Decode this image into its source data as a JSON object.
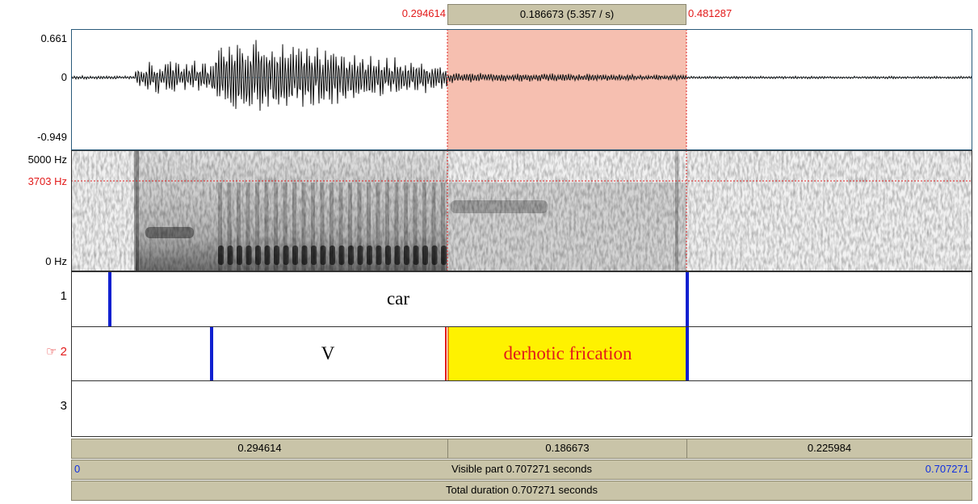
{
  "selection": {
    "start": "0.294614",
    "duration": "0.186673 (5.357 / s)",
    "end": "0.481287"
  },
  "waveform": {
    "max": "0.661",
    "zero": "0",
    "min": "-0.949"
  },
  "spectrogram": {
    "top": "5000 Hz",
    "cursor": "3703 Hz",
    "bottom": "0 Hz"
  },
  "tiers": [
    {
      "label": "1",
      "intervals": [
        "car"
      ]
    },
    {
      "label": "☞ 2",
      "intervals": [
        "V",
        "derhotic frication"
      ]
    },
    {
      "label": "3"
    }
  ],
  "bottom": {
    "segments": [
      "0.294614",
      "0.186673",
      "0.225984"
    ],
    "visible_start": "0",
    "visible": "Visible part 0.707271 seconds",
    "visible_end": "0.707271",
    "total": "Total duration 0.707271 seconds"
  }
}
